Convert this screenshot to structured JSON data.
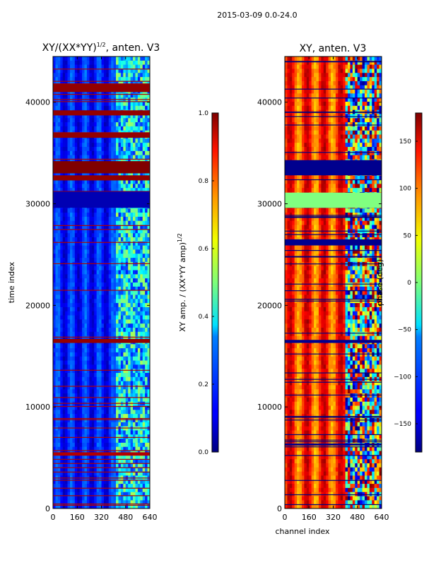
{
  "chart_data": [
    {
      "type": "heatmap",
      "suptitle": "2015-03-09 0.0-24.0",
      "title_prefix": "XY/(XX*YY)",
      "title_sup": "1/2",
      "title_suffix": ", anten. V3",
      "xlabel": "",
      "ylabel": "time index",
      "xlim": [
        0,
        640
      ],
      "ylim": [
        0,
        44500
      ],
      "x_ticks": [
        0,
        160,
        320,
        480,
        640
      ],
      "y_ticks": [
        0,
        10000,
        20000,
        30000,
        40000
      ],
      "colorbar": {
        "label_prefix": "XY amp. / (XX*YY amp)",
        "label_sup": "1/2",
        "range": [
          0.0,
          1.0
        ],
        "ticks": [
          "0.0",
          "0.2",
          "0.4",
          "0.6",
          "0.8",
          "1.0"
        ]
      },
      "bands": [
        {
          "y0": 29600,
          "y1": 31200,
          "value": 0.05
        },
        {
          "y0": 32300,
          "y1": 32800,
          "value": 0.98
        },
        {
          "y0": 33000,
          "y1": 34200,
          "value": 1.0
        },
        {
          "y0": 36500,
          "y1": 37000,
          "value": 0.98
        },
        {
          "y0": 38700,
          "y1": 39200,
          "value": 0.98
        },
        {
          "y0": 41000,
          "y1": 41800,
          "value": 0.98
        },
        {
          "y0": 16300,
          "y1": 16700,
          "value": 0.98
        },
        {
          "y0": 5200,
          "y1": 5500,
          "value": 0.95
        }
      ]
    },
    {
      "type": "heatmap",
      "title": "XY, anten. V3",
      "xlabel": "channel index",
      "ylabel": "",
      "xlim": [
        0,
        640
      ],
      "ylim": [
        0,
        44500
      ],
      "x_ticks": [
        0,
        160,
        320,
        480,
        640
      ],
      "y_ticks": [
        0,
        10000,
        20000,
        30000,
        40000
      ],
      "colorbar": {
        "label": "phase (deg)",
        "range": [
          -180,
          180
        ],
        "ticks": [
          "150",
          "100",
          "50",
          "0",
          "−50",
          "−100",
          "−150"
        ]
      },
      "bands": [
        {
          "y0": 29600,
          "y1": 31100,
          "value": 0
        },
        {
          "y0": 32800,
          "y1": 34300,
          "value": -175
        },
        {
          "y0": 25900,
          "y1": 26500,
          "value": -175
        },
        {
          "y0": 6200,
          "y1": 6400,
          "value": -175
        },
        {
          "y0": 16300,
          "y1": 16600,
          "value": -175
        }
      ]
    }
  ]
}
